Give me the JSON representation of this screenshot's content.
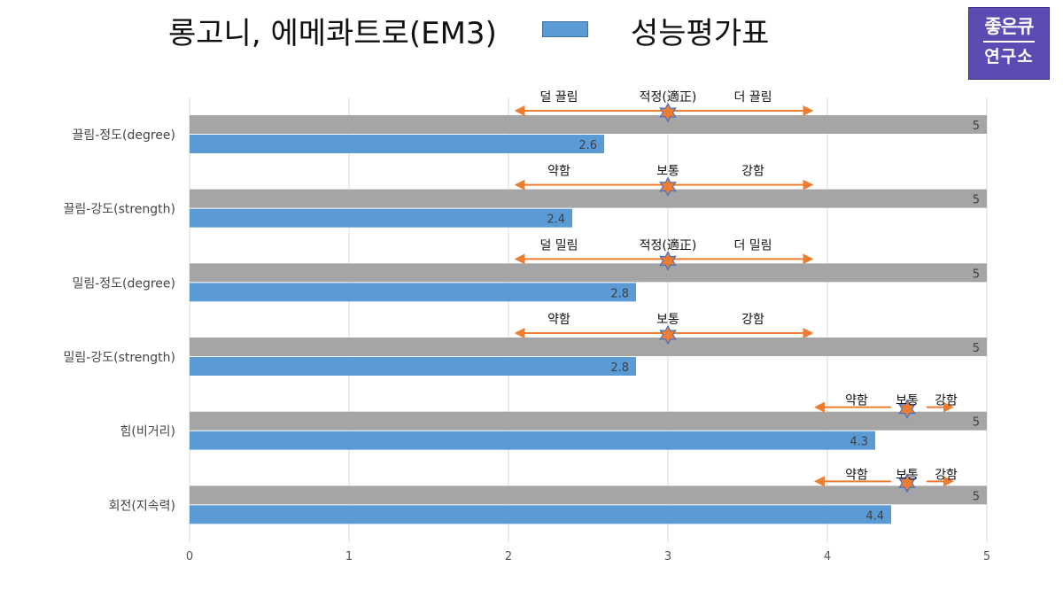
{
  "title": "롱고니, 에메콰트로(EM3)",
  "logo": {
    "line1": "좋은큐",
    "line2": "연구소"
  },
  "chart_data": {
    "type": "bar",
    "orientation": "horizontal",
    "categories": [
      "끌림-정도(degree)",
      "끌림-강도(strength)",
      "밀림-정도(degree)",
      "밀림-강도(strength)",
      "힘(비거리)",
      "회전(지속력)"
    ],
    "series": [
      {
        "name": "",
        "color": "#a5a5a5",
        "values": [
          5,
          5,
          5,
          5,
          5,
          5
        ]
      },
      {
        "name": "성능평가표",
        "color": "#5b9bd5",
        "values": [
          2.6,
          2.4,
          2.8,
          2.8,
          4.3,
          4.4
        ]
      }
    ],
    "data_labels": {
      "max": [
        "5",
        "5",
        "5",
        "5",
        "5",
        "5"
      ],
      "score": [
        "2.6",
        "2.4",
        "2.8",
        "2.8",
        "4.3",
        "4.4"
      ]
    },
    "xlim": [
      0,
      5
    ],
    "ticks": [
      "0",
      "1",
      "2",
      "3",
      "4",
      "5"
    ],
    "grid": true,
    "legend_position": "top",
    "annotations": [
      {
        "left": "덜 끌림",
        "center": "적정(適正)",
        "right": "더 끌림",
        "center_value": 3,
        "arrow_from": 2.05,
        "arrow_to": 3.9
      },
      {
        "left": "약함",
        "center": "보통",
        "right": "강함",
        "center_value": 3,
        "arrow_from": 2.05,
        "arrow_to": 3.9
      },
      {
        "left": "덜 밀림",
        "center": "적정(適正)",
        "right": "더 밀림",
        "center_value": 3,
        "arrow_from": 2.05,
        "arrow_to": 3.9
      },
      {
        "left": "약함",
        "center": "보통",
        "right": "강함",
        "center_value": 3,
        "arrow_from": 2.05,
        "arrow_to": 3.9
      },
      {
        "left": "약함",
        "center": "보통",
        "right": "강함",
        "center_value": 4.5,
        "arrow_from": 3.93,
        "arrow_to": 4.78
      },
      {
        "left": "약함",
        "center": "보통",
        "right": "강함",
        "center_value": 4.5,
        "arrow_from": 3.93,
        "arrow_to": 4.78
      }
    ],
    "marker_color": "#ed7d31",
    "arrow_color": "#ed7d31"
  }
}
